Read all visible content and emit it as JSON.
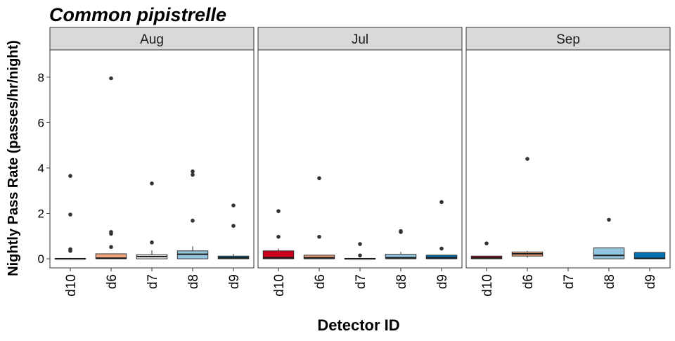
{
  "chart_data": {
    "type": "box",
    "title": "Common pipistrelle",
    "xlabel": "Detector ID",
    "ylabel": "Nightly Pass Rate (passes/hr/night)",
    "ylim": [
      -0.4,
      9.2
    ],
    "yticks": [
      0,
      2,
      4,
      6,
      8
    ],
    "categories": [
      "d10",
      "d6",
      "d7",
      "d8",
      "d9"
    ],
    "fill_colors": {
      "d10": "#c8001e",
      "d6": "#f4a582",
      "d7": "#f7f7f7",
      "d8": "#92c5de",
      "d9": "#0571b0"
    },
    "legend": "none",
    "grid": false,
    "panels": [
      {
        "label": "Aug",
        "boxes": [
          {
            "category": "d10",
            "q1": 0.0,
            "median": 0.0,
            "q3": 0.02,
            "whisker_low": 0.0,
            "whisker_high": 0.04,
            "outliers": [
              3.65,
              1.95,
              0.42,
              0.35
            ]
          },
          {
            "category": "d6",
            "q1": 0.0,
            "median": 0.03,
            "q3": 0.22,
            "whisker_low": 0.0,
            "whisker_high": 0.22,
            "outliers": [
              7.95,
              1.18,
              1.1,
              0.52
            ]
          },
          {
            "category": "d7",
            "q1": 0.0,
            "median": 0.1,
            "q3": 0.18,
            "whisker_low": 0.0,
            "whisker_high": 0.38,
            "outliers": [
              3.32,
              0.72
            ]
          },
          {
            "category": "d8",
            "q1": 0.0,
            "median": 0.2,
            "q3": 0.35,
            "whisker_low": 0.0,
            "whisker_high": 0.55,
            "outliers": [
              3.85,
              3.7,
              1.68
            ]
          },
          {
            "category": "d9",
            "q1": 0.0,
            "median": 0.05,
            "q3": 0.12,
            "whisker_low": 0.0,
            "whisker_high": 0.22,
            "outliers": [
              2.35,
              1.45
            ]
          }
        ]
      },
      {
        "label": "Jul",
        "boxes": [
          {
            "category": "d10",
            "q1": 0.0,
            "median": 0.05,
            "q3": 0.35,
            "whisker_low": 0.0,
            "whisker_high": 0.45,
            "outliers": [
              2.1,
              0.97
            ]
          },
          {
            "category": "d6",
            "q1": 0.0,
            "median": 0.05,
            "q3": 0.16,
            "whisker_low": 0.0,
            "whisker_high": 0.16,
            "outliers": [
              3.55,
              0.97
            ]
          },
          {
            "category": "d7",
            "q1": 0.0,
            "median": 0.0,
            "q3": 0.02,
            "whisker_low": 0.0,
            "whisker_high": 0.04,
            "outliers": [
              0.65,
              0.15
            ]
          },
          {
            "category": "d8",
            "q1": 0.0,
            "median": 0.05,
            "q3": 0.2,
            "whisker_low": 0.0,
            "whisker_high": 0.3,
            "outliers": [
              1.22,
              1.18
            ]
          },
          {
            "category": "d9",
            "q1": 0.0,
            "median": 0.05,
            "q3": 0.16,
            "whisker_low": 0.0,
            "whisker_high": 0.16,
            "outliers": [
              2.5,
              0.45
            ]
          }
        ]
      },
      {
        "label": "Sep",
        "boxes": [
          {
            "category": "d10",
            "q1": 0.0,
            "median": 0.05,
            "q3": 0.12,
            "whisker_low": 0.0,
            "whisker_high": 0.12,
            "outliers": [
              0.68
            ]
          },
          {
            "category": "d6",
            "q1": 0.12,
            "median": 0.22,
            "q3": 0.3,
            "whisker_low": 0.05,
            "whisker_high": 0.35,
            "outliers": [
              4.4
            ]
          },
          {
            "category": "d8",
            "q1": 0.0,
            "median": 0.15,
            "q3": 0.48,
            "whisker_low": 0.0,
            "whisker_high": 0.48,
            "outliers": [
              1.72
            ]
          },
          {
            "category": "d9",
            "q1": 0.0,
            "median": 0.02,
            "q3": 0.28,
            "whisker_low": 0.0,
            "whisker_high": 0.28,
            "outliers": []
          }
        ]
      }
    ]
  }
}
